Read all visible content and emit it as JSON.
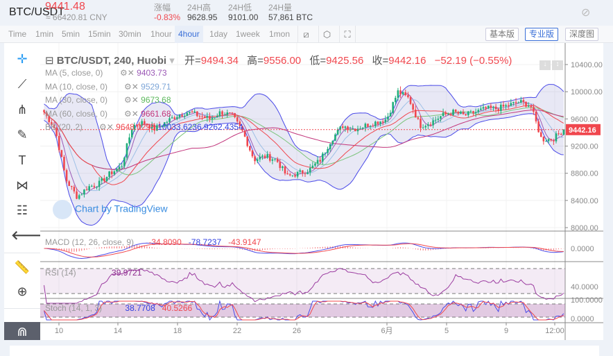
{
  "header": {
    "pair": "BTC/USDT",
    "price": "9441.48",
    "cny": "≈ 66420.81 CNY",
    "stats": [
      {
        "label": "涨幅",
        "value": "-0.83%",
        "color": "#f0474e"
      },
      {
        "label": "24H高",
        "value": "9628.95"
      },
      {
        "label": "24H低",
        "value": "9101.00"
      },
      {
        "label": "24H量",
        "value": "57,861 BTC"
      }
    ]
  },
  "toolbar": {
    "intervals": [
      "Time",
      "1min",
      "5min",
      "15min",
      "30min",
      "1hour",
      "4hour",
      "1day",
      "1week",
      "1mon"
    ],
    "active": "4hour",
    "views": [
      "基本版",
      "专业版",
      "深度图"
    ],
    "active_view": "专业版"
  },
  "legend": {
    "title": "BTC/USDT, 240, Huobi",
    "open_label": "开=",
    "open": "9494.34",
    "high_label": "高=",
    "high": "9556.00",
    "low_label": "低=",
    "low": "9425.56",
    "close_label": "收=",
    "close": "9442.16",
    "change": "−52.19 (−0.55%)",
    "indicators": [
      {
        "name": "MA (5, close, 0)",
        "value": "9403.73",
        "color": "#9b59b6"
      },
      {
        "name": "MA (10, close, 0)",
        "value": "9529.71",
        "color": "#7ea6d8"
      },
      {
        "name": "MA (30, close, 0)",
        "value": "9673.68",
        "color": "#5cb85c"
      },
      {
        "name": "MA (60, close, 0)",
        "value": "9661.68",
        "color": "#c2357b"
      },
      {
        "name": "BB (20, 2)",
        "value": "9648.0295",
        "value2": "10033.6236",
        "value3": "9262.4354",
        "color": "#f0474e"
      }
    ],
    "watermark": "Chart by TradingView"
  },
  "macd": {
    "name": "MACD (12, 26, close, 9)",
    "v1": "-34.8090",
    "v2": "-78.7237",
    "v3": "-43.9147"
  },
  "rsi": {
    "name": "RSI (14)",
    "value": "39.9721"
  },
  "stoch": {
    "name": "Stoch (14, 1, 3)",
    "v1": "38.7708",
    "v2": "40.5266"
  },
  "price_axis": [
    "10400.00",
    "10000.00",
    "9600.00",
    "9200.00",
    "8800.00",
    "8400.00",
    "8000.00"
  ],
  "current_price_label": "9442.16",
  "macd_axis": "0.0000",
  "rsi_axis": "40.0000",
  "stoch_axis": [
    "100.0000",
    "0.0000"
  ],
  "date_axis": [
    "10",
    "14",
    "18",
    "22",
    "26",
    "6月",
    "5",
    "9",
    "12:00"
  ],
  "chart_data": {
    "type": "candlestick",
    "ylim": [
      8000,
      10400
    ],
    "anchor_closes": [
      9700,
      9450,
      8700,
      8450,
      8600,
      8650,
      8800,
      8900,
      9500,
      9550,
      9450,
      9550,
      9650,
      9700,
      9650,
      9600,
      9700,
      9650,
      9400,
      9000,
      9050,
      9000,
      8750,
      8800,
      8850,
      9000,
      9300,
      9500,
      9450,
      9500,
      9550,
      9600,
      10000,
      9900,
      9500,
      9550,
      9650,
      9700,
      9650,
      9700,
      9750,
      9750,
      9800,
      9850,
      9800,
      9300,
      9300,
      9442
    ]
  }
}
